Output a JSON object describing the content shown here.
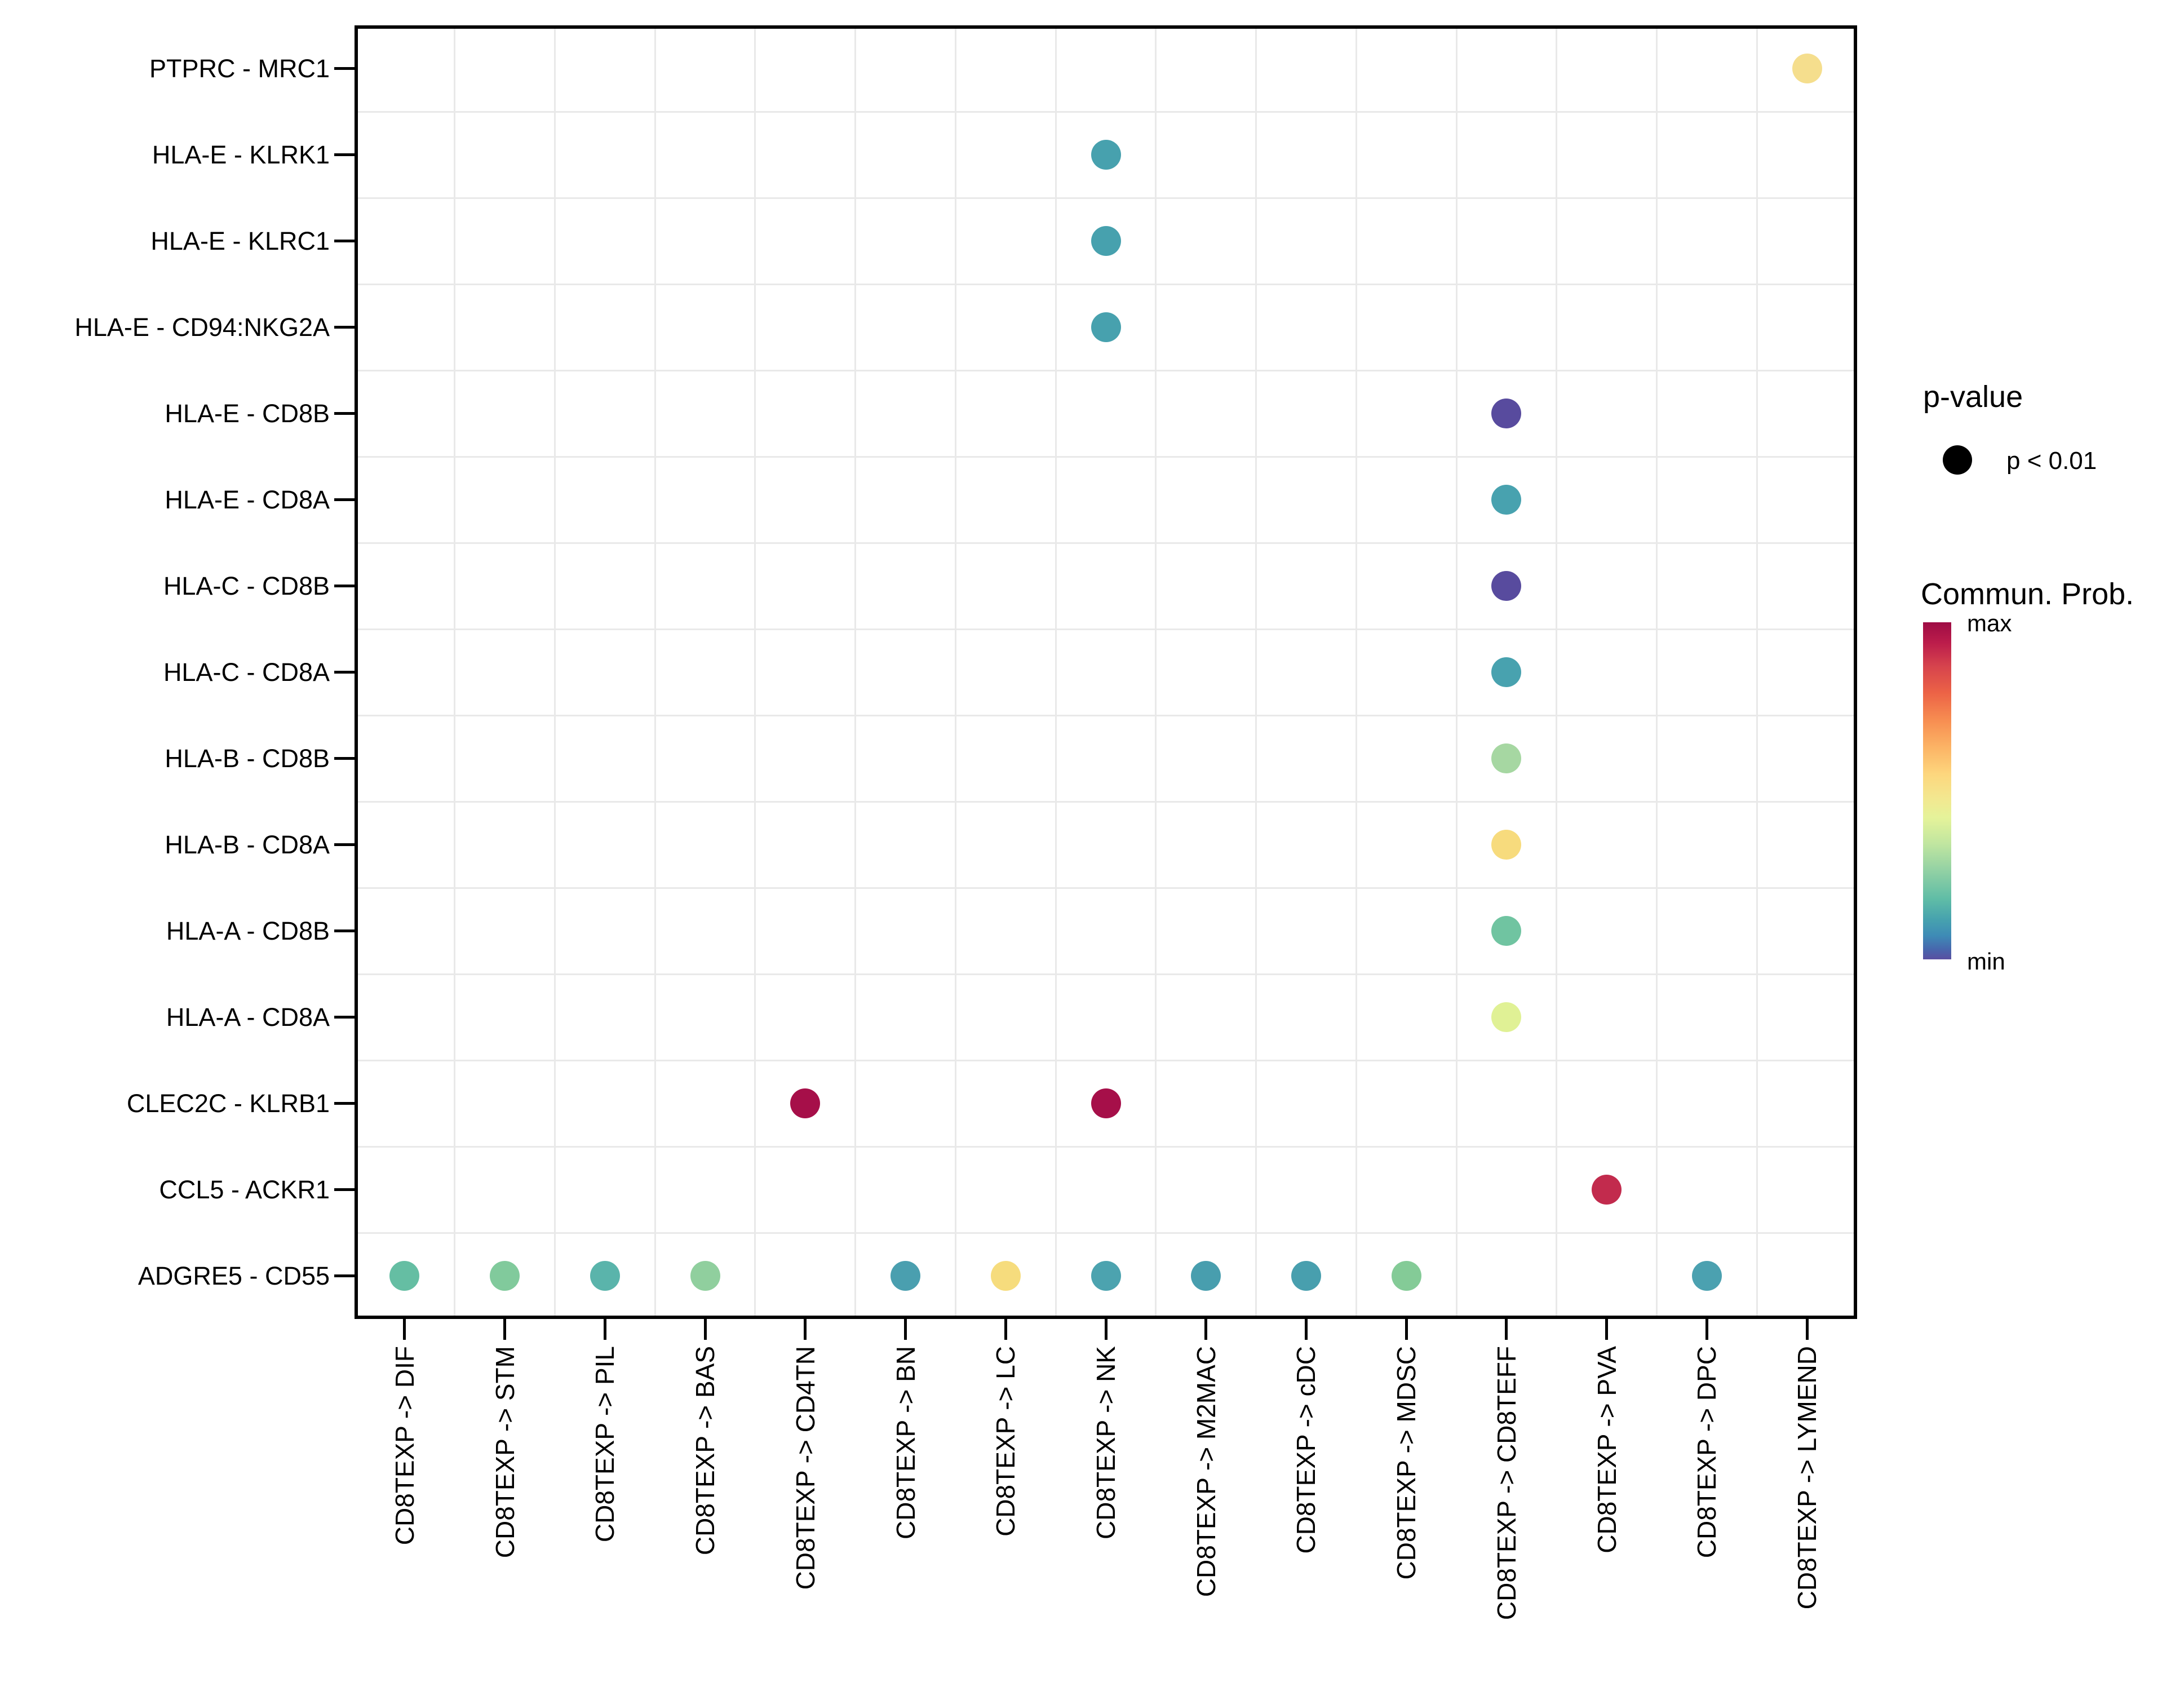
{
  "figure": {
    "background": "#FFFFFF",
    "panel_border_color": "#000000",
    "grid_color": "#E9E9E9",
    "text_color": "#000000"
  },
  "legend": {
    "p_value": {
      "title": "p-value",
      "entry": "p < 0.01",
      "dot_color": "#000000"
    },
    "commun_prob": {
      "title": "Commun. Prob.",
      "max_label": "max",
      "min_label": "min",
      "gradient_stops": [
        [
          0.0,
          "#9E0C44"
        ],
        [
          0.06,
          "#BB1C4B"
        ],
        [
          0.13,
          "#D6434D"
        ],
        [
          0.21,
          "#EC6346"
        ],
        [
          0.29,
          "#F78D51"
        ],
        [
          0.37,
          "#FCB365"
        ],
        [
          0.45,
          "#FDD67D"
        ],
        [
          0.52,
          "#F3E78F"
        ],
        [
          0.58,
          "#E5F39A"
        ],
        [
          0.66,
          "#BFE5A0"
        ],
        [
          0.74,
          "#90D0A4"
        ],
        [
          0.82,
          "#60BDA6"
        ],
        [
          0.88,
          "#47A3AE"
        ],
        [
          0.93,
          "#3E8BB6"
        ],
        [
          0.97,
          "#4767AD"
        ],
        [
          1.0,
          "#5A4FA1"
        ]
      ]
    }
  },
  "chart_data": {
    "type": "bubble",
    "title": "",
    "xlabel": "",
    "ylabel": "",
    "grid": "between-categories",
    "legend_position": "right",
    "x_categories": [
      "CD8TEXP -> DIF",
      "CD8TEXP -> STM",
      "CD8TEXP -> PIL",
      "CD8TEXP -> BAS",
      "CD8TEXP -> CD4TN",
      "CD8TEXP -> BN",
      "CD8TEXP -> LC",
      "CD8TEXP -> NK",
      "CD8TEXP -> M2MAC",
      "CD8TEXP -> cDC",
      "CD8TEXP -> MDSC",
      "CD8TEXP -> CD8TEFF",
      "CD8TEXP -> PVA",
      "CD8TEXP -> DPC",
      "CD8TEXP -> LYMEND"
    ],
    "y_categories": [
      "PTPRC - MRC1",
      "HLA-E - KLRK1",
      "HLA-E - KLRC1",
      "HLA-E - CD94:NKG2A",
      "HLA-E - CD8B",
      "HLA-E - CD8A",
      "HLA-C - CD8B",
      "HLA-C - CD8A",
      "HLA-B - CD8B",
      "HLA-B - CD8A",
      "HLA-A - CD8B",
      "HLA-A - CD8A",
      "CLEC2C - KLRB1",
      "CCL5 - ACKR1",
      "ADGRE5 - CD55"
    ],
    "points": [
      {
        "y": "PTPRC - MRC1",
        "x": "CD8TEXP -> LYMEND",
        "color": "#F5DE8D",
        "prob_norm": 0.6,
        "p": "p < 0.01"
      },
      {
        "y": "HLA-E - KLRK1",
        "x": "CD8TEXP -> NK",
        "color": "#47A1AE",
        "prob_norm": 0.16,
        "p": "p < 0.01"
      },
      {
        "y": "HLA-E - KLRC1",
        "x": "CD8TEXP -> NK",
        "color": "#47A1AE",
        "prob_norm": 0.16,
        "p": "p < 0.01"
      },
      {
        "y": "HLA-E - CD94:NKG2A",
        "x": "CD8TEXP -> NK",
        "color": "#47A1AE",
        "prob_norm": 0.16,
        "p": "p < 0.01"
      },
      {
        "y": "HLA-E - CD8B",
        "x": "CD8TEXP -> CD8TEFF",
        "color": "#584B9E",
        "prob_norm": 0.01,
        "p": "p < 0.01"
      },
      {
        "y": "HLA-E - CD8A",
        "x": "CD8TEXP -> CD8TEFF",
        "color": "#48A2AF",
        "prob_norm": 0.16,
        "p": "p < 0.01"
      },
      {
        "y": "HLA-C - CD8B",
        "x": "CD8TEXP -> CD8TEFF",
        "color": "#584B9E",
        "prob_norm": 0.01,
        "p": "p < 0.01"
      },
      {
        "y": "HLA-C - CD8A",
        "x": "CD8TEXP -> CD8TEFF",
        "color": "#48A2AF",
        "prob_norm": 0.16,
        "p": "p < 0.01"
      },
      {
        "y": "HLA-B - CD8B",
        "x": "CD8TEXP -> CD8TEFF",
        "color": "#A6D7A2",
        "prob_norm": 0.3,
        "p": "p < 0.01"
      },
      {
        "y": "HLA-B - CD8A",
        "x": "CD8TEXP -> CD8TEFF",
        "color": "#F7DB7D",
        "prob_norm": 0.62,
        "p": "p < 0.01"
      },
      {
        "y": "HLA-A - CD8B",
        "x": "CD8TEXP -> CD8TEFF",
        "color": "#70C4A1",
        "prob_norm": 0.22,
        "p": "p < 0.01"
      },
      {
        "y": "HLA-A - CD8A",
        "x": "CD8TEXP -> CD8TEFF",
        "color": "#E0F195",
        "prob_norm": 0.4,
        "p": "p < 0.01"
      },
      {
        "y": "CLEC2C - KLRB1",
        "x": "CD8TEXP -> CD4TN",
        "color": "#A60F49",
        "prob_norm": 0.99,
        "p": "p < 0.01"
      },
      {
        "y": "CLEC2C - KLRB1",
        "x": "CD8TEXP -> NK",
        "color": "#A60F49",
        "prob_norm": 0.99,
        "p": "p < 0.01"
      },
      {
        "y": "CCL5 - ACKR1",
        "x": "CD8TEXP -> PVA",
        "color": "#C22B4D",
        "prob_norm": 0.93,
        "p": "p < 0.01"
      },
      {
        "y": "ADGRE5 - CD55",
        "x": "CD8TEXP -> DIF",
        "color": "#65BEA3",
        "prob_norm": 0.2,
        "p": "p < 0.01"
      },
      {
        "y": "ADGRE5 - CD55",
        "x": "CD8TEXP -> STM",
        "color": "#81CA9C",
        "prob_norm": 0.25,
        "p": "p < 0.01"
      },
      {
        "y": "ADGRE5 - CD55",
        "x": "CD8TEXP -> PIL",
        "color": "#5AB4AB",
        "prob_norm": 0.18,
        "p": "p < 0.01"
      },
      {
        "y": "ADGRE5 - CD55",
        "x": "CD8TEXP -> BAS",
        "color": "#90CF9E",
        "prob_norm": 0.27,
        "p": "p < 0.01"
      },
      {
        "y": "ADGRE5 - CD55",
        "x": "CD8TEXP -> BN",
        "color": "#4A9FAF",
        "prob_norm": 0.15,
        "p": "p < 0.01"
      },
      {
        "y": "ADGRE5 - CD55",
        "x": "CD8TEXP -> LC",
        "color": "#F6DC7D",
        "prob_norm": 0.61,
        "p": "p < 0.01"
      },
      {
        "y": "ADGRE5 - CD55",
        "x": "CD8TEXP -> NK",
        "color": "#4CA3AF",
        "prob_norm": 0.16,
        "p": "p < 0.01"
      },
      {
        "y": "ADGRE5 - CD55",
        "x": "CD8TEXP -> M2MAC",
        "color": "#489EAE",
        "prob_norm": 0.15,
        "p": "p < 0.01"
      },
      {
        "y": "ADGRE5 - CD55",
        "x": "CD8TEXP -> cDC",
        "color": "#489FAE",
        "prob_norm": 0.15,
        "p": "p < 0.01"
      },
      {
        "y": "ADGRE5 - CD55",
        "x": "CD8TEXP -> MDSC",
        "color": "#84CB97",
        "prob_norm": 0.26,
        "p": "p < 0.01"
      },
      {
        "y": "ADGRE5 - CD55",
        "x": "CD8TEXP -> DPC",
        "color": "#4BA1B0",
        "prob_norm": 0.16,
        "p": "p < 0.01"
      }
    ]
  }
}
